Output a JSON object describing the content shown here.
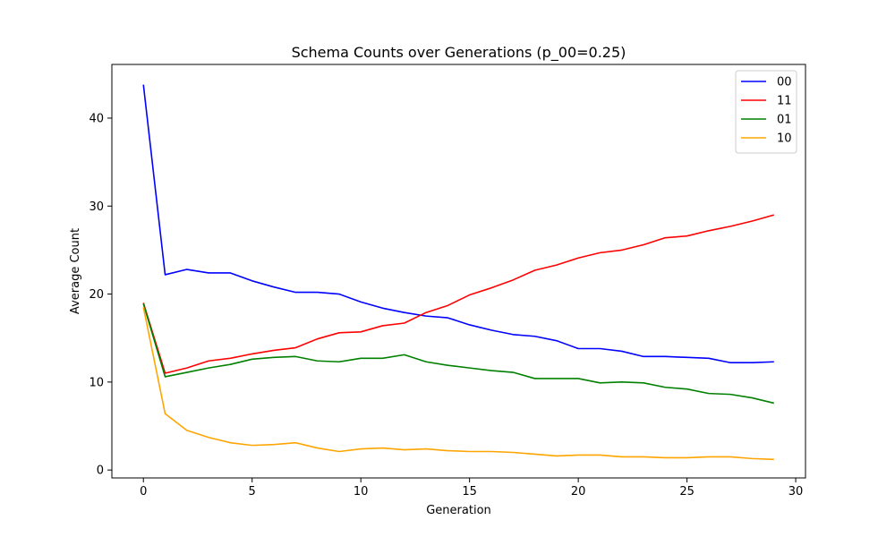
{
  "chart_data": {
    "type": "line",
    "title": "Schema Counts over Generations (p_00=0.25)",
    "xlabel": "Generation",
    "ylabel": "Average Count",
    "xlim": [
      -1.45,
      30.45
    ],
    "ylim": [
      -0.9,
      46.1
    ],
    "xticks": [
      0,
      5,
      10,
      15,
      20,
      25,
      30
    ],
    "yticks": [
      0,
      10,
      20,
      30,
      40
    ],
    "grid": false,
    "legend_position": "top-right",
    "x": [
      0,
      1,
      2,
      3,
      4,
      5,
      6,
      7,
      8,
      9,
      10,
      11,
      12,
      13,
      14,
      15,
      16,
      17,
      18,
      19,
      20,
      21,
      22,
      23,
      24,
      25,
      26,
      27,
      28,
      29
    ],
    "series": [
      {
        "name": "00",
        "color": "#0000ff",
        "values": [
          43.8,
          22.2,
          22.8,
          22.4,
          22.4,
          21.5,
          20.8,
          20.2,
          20.2,
          20.0,
          19.1,
          18.4,
          17.9,
          17.5,
          17.3,
          16.5,
          15.9,
          15.4,
          15.2,
          14.7,
          13.8,
          13.8,
          13.5,
          12.9,
          12.9,
          12.8,
          12.7,
          12.2,
          12.2,
          12.3
        ]
      },
      {
        "name": "11",
        "color": "#ff0000",
        "values": [
          19.0,
          11.0,
          11.6,
          12.4,
          12.7,
          13.2,
          13.6,
          13.9,
          14.9,
          15.6,
          15.7,
          16.4,
          16.7,
          17.9,
          18.7,
          19.9,
          20.7,
          21.6,
          22.7,
          23.3,
          24.1,
          24.7,
          25.0,
          25.6,
          26.4,
          26.6,
          27.2,
          27.7,
          28.3,
          29.0
        ]
      },
      {
        "name": "01",
        "color": "#008000",
        "values": [
          18.9,
          10.6,
          11.1,
          11.6,
          12.0,
          12.6,
          12.8,
          12.9,
          12.4,
          12.3,
          12.7,
          12.7,
          13.1,
          12.3,
          11.9,
          11.6,
          11.3,
          11.1,
          10.4,
          10.4,
          10.4,
          9.9,
          10.0,
          9.9,
          9.4,
          9.2,
          8.7,
          8.6,
          8.2,
          7.6
        ]
      },
      {
        "name": "10",
        "color": "#ffa500",
        "values": [
          18.5,
          6.4,
          4.5,
          3.7,
          3.1,
          2.8,
          2.9,
          3.1,
          2.5,
          2.1,
          2.4,
          2.5,
          2.3,
          2.4,
          2.2,
          2.1,
          2.1,
          2.0,
          1.8,
          1.6,
          1.7,
          1.7,
          1.5,
          1.5,
          1.4,
          1.4,
          1.5,
          1.5,
          1.3,
          1.2
        ]
      }
    ]
  }
}
